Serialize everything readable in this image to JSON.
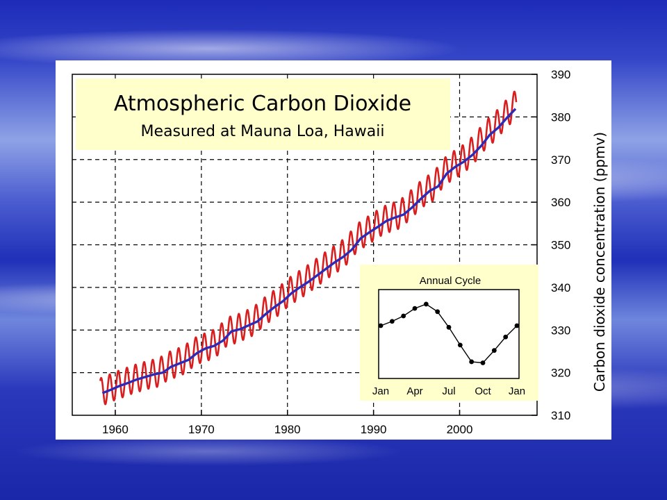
{
  "chart_data": [
    {
      "type": "line",
      "title": "Atmospheric Carbon Dioxide",
      "subtitle": "Measured at Mauna Loa, Hawaii",
      "ylabel": "Carbon dioxide concentration (ppmv)",
      "xlabel": "",
      "xlim": [
        1955,
        2009
      ],
      "ylim": [
        310,
        390
      ],
      "x_ticks": [
        "1960",
        "1970",
        "1980",
        "1990",
        "2000"
      ],
      "y_ticks": [
        "310",
        "320",
        "330",
        "340",
        "350",
        "360",
        "370",
        "380",
        "390"
      ],
      "grid": true,
      "series": [
        {
          "color": "#d81e1e",
          "style": "monthly",
          "x": [
            1958.0,
            1959.0,
            1960.0,
            1961.0,
            1962.0,
            1963.0,
            1964.0,
            1965.0,
            1966.0,
            1967.0,
            1968.0,
            1969.0,
            1970.0,
            1971.0,
            1972.0,
            1973.0,
            1974.0,
            1975.0,
            1976.0,
            1977.0,
            1978.0,
            1979.0,
            1980.0,
            1981.0,
            1982.0,
            1983.0,
            1984.0,
            1985.0,
            1986.0,
            1987.0,
            1988.0,
            1989.0,
            1990.0,
            1991.0,
            1992.0,
            1993.0,
            1994.0,
            1995.0,
            1996.0,
            1997.0,
            1998.0,
            1999.0,
            2000.0,
            2001.0,
            2002.0,
            2003.0,
            2004.0,
            2005.0,
            2006.0
          ],
          "trend": [
            315.2,
            316.0,
            316.9,
            317.6,
            318.4,
            319.0,
            319.6,
            320.0,
            321.4,
            322.2,
            323.0,
            324.6,
            325.7,
            326.3,
            327.5,
            329.7,
            330.2,
            331.1,
            332.0,
            333.8,
            335.4,
            336.8,
            338.7,
            340.1,
            341.4,
            342.9,
            344.4,
            345.9,
            347.2,
            348.9,
            351.5,
            352.9,
            354.2,
            355.6,
            356.4,
            357.1,
            358.8,
            360.8,
            362.6,
            363.7,
            366.7,
            368.3,
            369.5,
            371.1,
            373.2,
            375.8,
            377.5,
            379.8,
            381.9
          ],
          "seasonal_amplitude": 3.3
        },
        {
          "color": "#2b2bb8",
          "style": "trend",
          "x": [
            1958.0,
            1959.0,
            1960.0,
            1961.0,
            1962.0,
            1963.0,
            1964.0,
            1965.0,
            1966.0,
            1967.0,
            1968.0,
            1969.0,
            1970.0,
            1971.0,
            1972.0,
            1973.0,
            1974.0,
            1975.0,
            1976.0,
            1977.0,
            1978.0,
            1979.0,
            1980.0,
            1981.0,
            1982.0,
            1983.0,
            1984.0,
            1985.0,
            1986.0,
            1987.0,
            1988.0,
            1989.0,
            1990.0,
            1991.0,
            1992.0,
            1993.0,
            1994.0,
            1995.0,
            1996.0,
            1997.0,
            1998.0,
            1999.0,
            2000.0,
            2001.0,
            2002.0,
            2003.0,
            2004.0,
            2005.0,
            2006.0
          ],
          "values": [
            315.2,
            316.0,
            316.9,
            317.6,
            318.4,
            319.0,
            319.6,
            320.0,
            321.4,
            322.2,
            323.0,
            324.6,
            325.7,
            326.3,
            327.5,
            329.7,
            330.2,
            331.1,
            332.0,
            333.8,
            335.4,
            336.8,
            338.7,
            340.1,
            341.4,
            342.9,
            344.4,
            345.9,
            347.2,
            348.9,
            351.5,
            352.9,
            354.2,
            355.6,
            356.4,
            357.1,
            358.8,
            360.8,
            362.6,
            363.7,
            366.7,
            368.3,
            369.5,
            371.1,
            373.2,
            375.8,
            377.5,
            379.8,
            381.9
          ]
        }
      ]
    },
    {
      "type": "line",
      "title": "Annual Cycle",
      "categories_ticks": [
        "Jan",
        "Apr",
        "Jul",
        "Oct",
        "Jan"
      ],
      "x": [
        0,
        1,
        2,
        3,
        4,
        5,
        6,
        7,
        8,
        9,
        10,
        11,
        12
      ],
      "values": [
        0.8,
        1.6,
        2.6,
        4.0,
        4.8,
        3.4,
        0.5,
        -2.8,
        -5.9,
        -6.1,
        -3.8,
        -1.3,
        0.8
      ],
      "ylim": [
        -9,
        7.5
      ],
      "markers": true
    }
  ]
}
